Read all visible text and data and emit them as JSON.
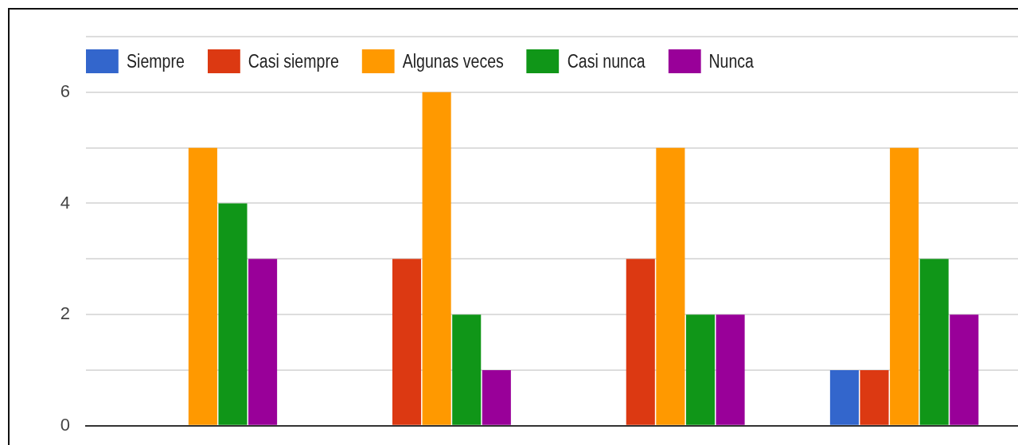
{
  "chart_data": {
    "type": "bar",
    "categories": [
      null,
      null,
      null,
      null
    ],
    "series": [
      {
        "name": "Siempre",
        "color": "#3366cc",
        "values": [
          0,
          0,
          0,
          1
        ]
      },
      {
        "name": "Casi siempre",
        "color": "#dc3912",
        "values": [
          0,
          3,
          3,
          1
        ]
      },
      {
        "name": "Algunas veces",
        "color": "#ff9900",
        "values": [
          5,
          6,
          5,
          5
        ]
      },
      {
        "name": "Casi nunca",
        "color": "#109618",
        "values": [
          4,
          2,
          2,
          3
        ]
      },
      {
        "name": "Nunca",
        "color": "#990099",
        "values": [
          3,
          1,
          2,
          2
        ]
      }
    ],
    "ylim": [
      0,
      7
    ],
    "yticks": [
      0,
      {
        "value": 1,
        "label": null
      },
      2,
      {
        "value": 3,
        "label": null
      },
      4,
      {
        "value": 5,
        "label": null
      },
      6,
      {
        "value": 7,
        "label": null
      }
    ],
    "grid": "y",
    "legend": "top left"
  }
}
